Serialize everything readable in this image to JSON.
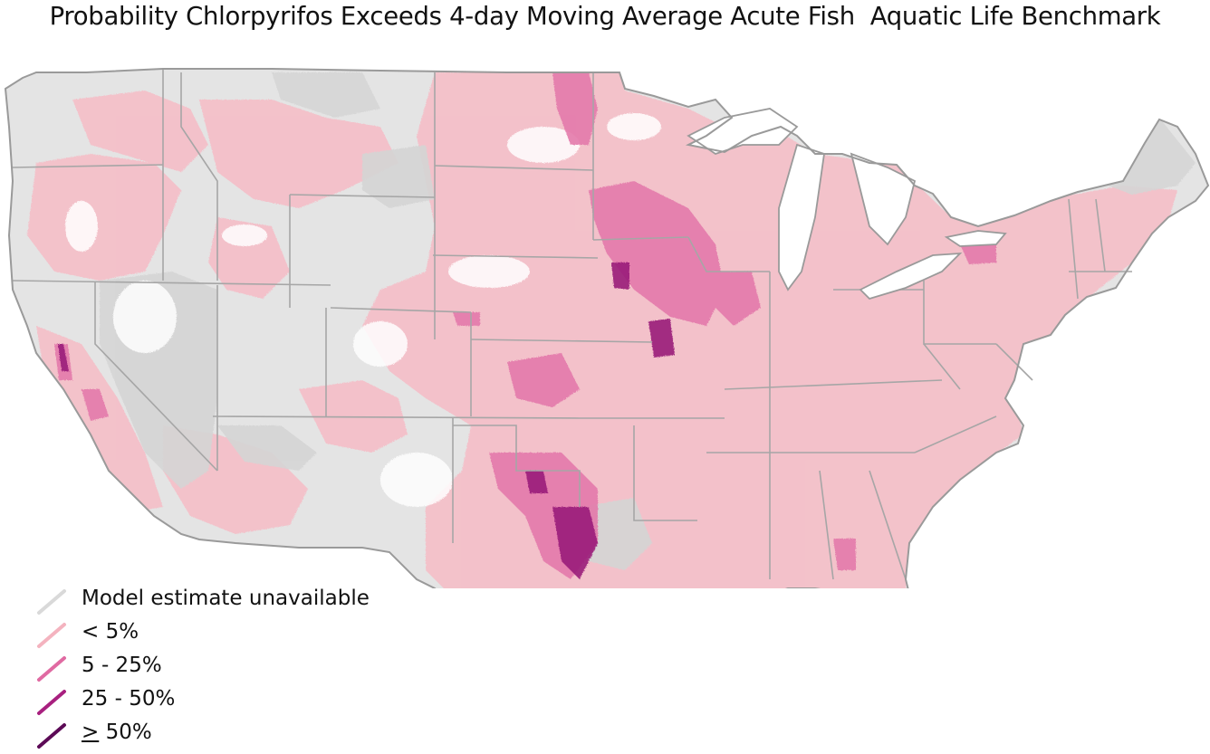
{
  "title": "Probability Chlorpyrifos Exceeds 4-day Moving Average Acute Fish  Aquatic Life Benchmark",
  "legend": {
    "items": [
      {
        "label": "Model estimate unavailable",
        "color": "#d9d9d9"
      },
      {
        "label": "< 5%",
        "color": "#f4b3bf"
      },
      {
        "label": "5 - 25%",
        "color": "#e06aa2"
      },
      {
        "label": "25 - 50%",
        "color": "#a8207f"
      },
      {
        "ge_symbol": ">",
        "value": "50%",
        "color": "#5c0a56"
      }
    ]
  },
  "map": {
    "region": "contiguous-united-states",
    "base_colors": {
      "unavailable": "#d9d9d9",
      "lt5": "#f4b3bf"
    },
    "boundary_color": "#a6a6a6",
    "water_outline_color": "#9a9a9a"
  }
}
